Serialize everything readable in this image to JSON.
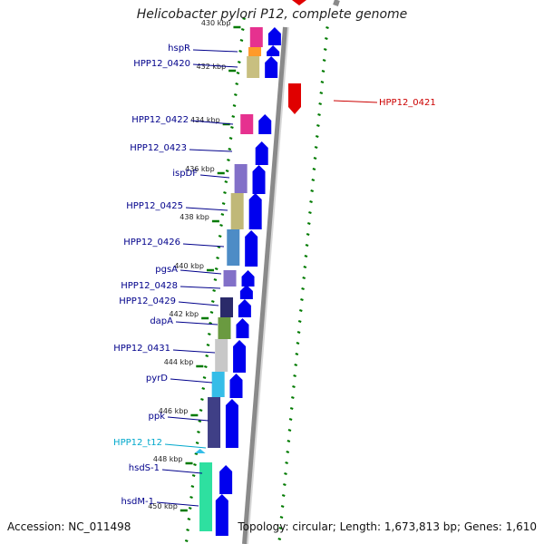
{
  "title": "Helicobacter pylori P12, complete genome",
  "accession": "Accession: NC_011498",
  "topology": "Topology: circular; Length: 1,673,813 bp; Genes: 1,610",
  "colors": {
    "label_default": "#00008b",
    "label_red": "#cc0000",
    "label_cyan": "#00a8cc",
    "tick": "#007a00",
    "arrow_blue": "#0000ee",
    "arrow_red": "#e00000",
    "backbone": "#8a8a8a"
  },
  "kbp_labels": [
    "430 kbp",
    "432 kbp",
    "434 kbp",
    "436 kbp",
    "438 kbp",
    "440 kbp",
    "442 kbp",
    "444 kbp",
    "446 kbp",
    "448 kbp",
    "450 kbp"
  ],
  "genes": [
    {
      "label": "hspR",
      "color": "#00008b"
    },
    {
      "label": "HPP12_0420",
      "color": "#00008b"
    },
    {
      "label": "HPP12_0421",
      "color": "#cc0000"
    },
    {
      "label": "HPP12_0422",
      "color": "#00008b"
    },
    {
      "label": "HPP12_0423",
      "color": "#00008b"
    },
    {
      "label": "ispDF",
      "color": "#00008b"
    },
    {
      "label": "HPP12_0425",
      "color": "#00008b"
    },
    {
      "label": "HPP12_0426",
      "color": "#00008b"
    },
    {
      "label": "pgsA",
      "color": "#00008b"
    },
    {
      "label": "HPP12_0428",
      "color": "#00008b"
    },
    {
      "label": "HPP12_0429",
      "color": "#00008b"
    },
    {
      "label": "dapA",
      "color": "#00008b"
    },
    {
      "label": "HPP12_0431",
      "color": "#00008b"
    },
    {
      "label": "pyrD",
      "color": "#00008b"
    },
    {
      "label": "ppk",
      "color": "#00008b"
    },
    {
      "label": "HPP12_t12",
      "color": "#00a8cc"
    },
    {
      "label": "hsdS-1",
      "color": "#00008b"
    },
    {
      "label": "hsdM-1",
      "color": "#00008b"
    }
  ]
}
